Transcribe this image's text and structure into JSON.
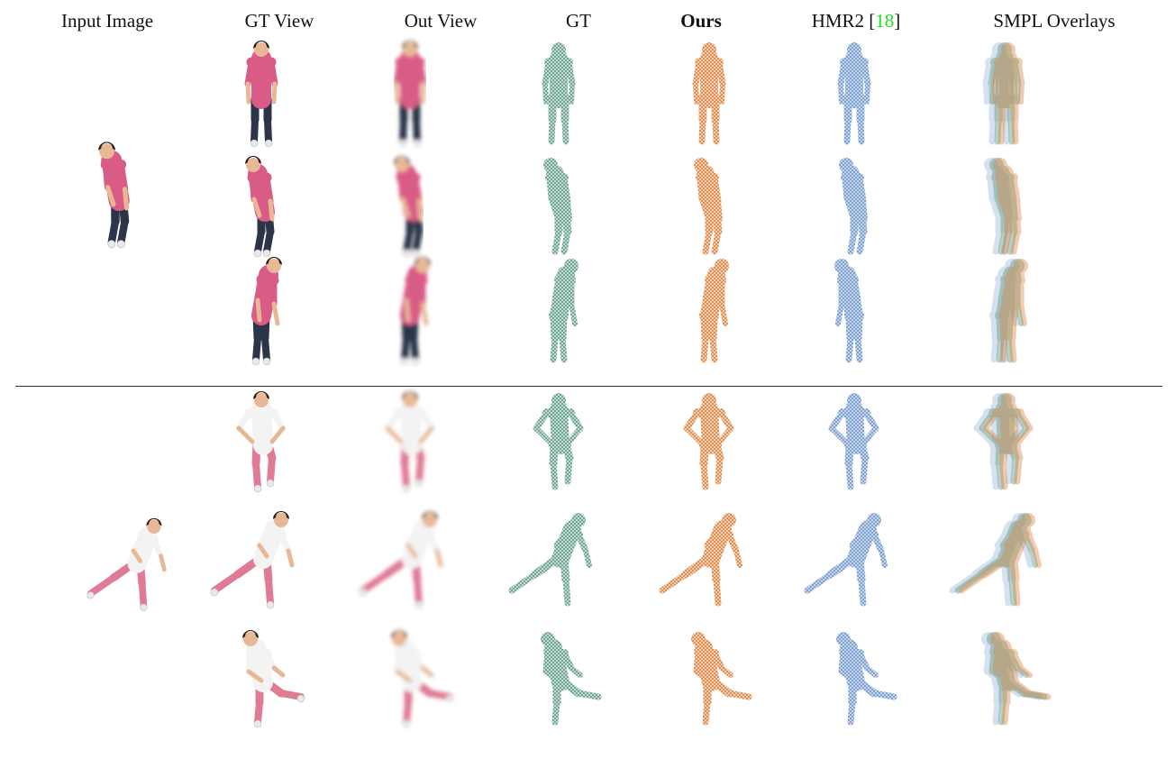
{
  "headers": {
    "input": "Input Image",
    "gt_view": "GT View",
    "out_view": "Out View",
    "gt": "GT",
    "ours": "Ours",
    "hmr2_prefix": "HMR2 [",
    "hmr2_cite": "18",
    "hmr2_suffix": "]",
    "overlays": "SMPL Overlays"
  },
  "colors": {
    "gt_mesh": "#5f9a86",
    "ours_mesh": "#d9823f",
    "hmr2_mesh": "#6d95c9",
    "shirt_pink": "#d95c86",
    "pants_dark": "#2b3448",
    "leggings_pink": "#e07b96",
    "citation": "#22dd22"
  },
  "rows": [
    {
      "pose": "stand"
    },
    {
      "pose": "bend"
    },
    {
      "pose": "lean"
    },
    {
      "pose": "akimbo"
    },
    {
      "pose": "lunge"
    },
    {
      "pose": "kick"
    }
  ]
}
